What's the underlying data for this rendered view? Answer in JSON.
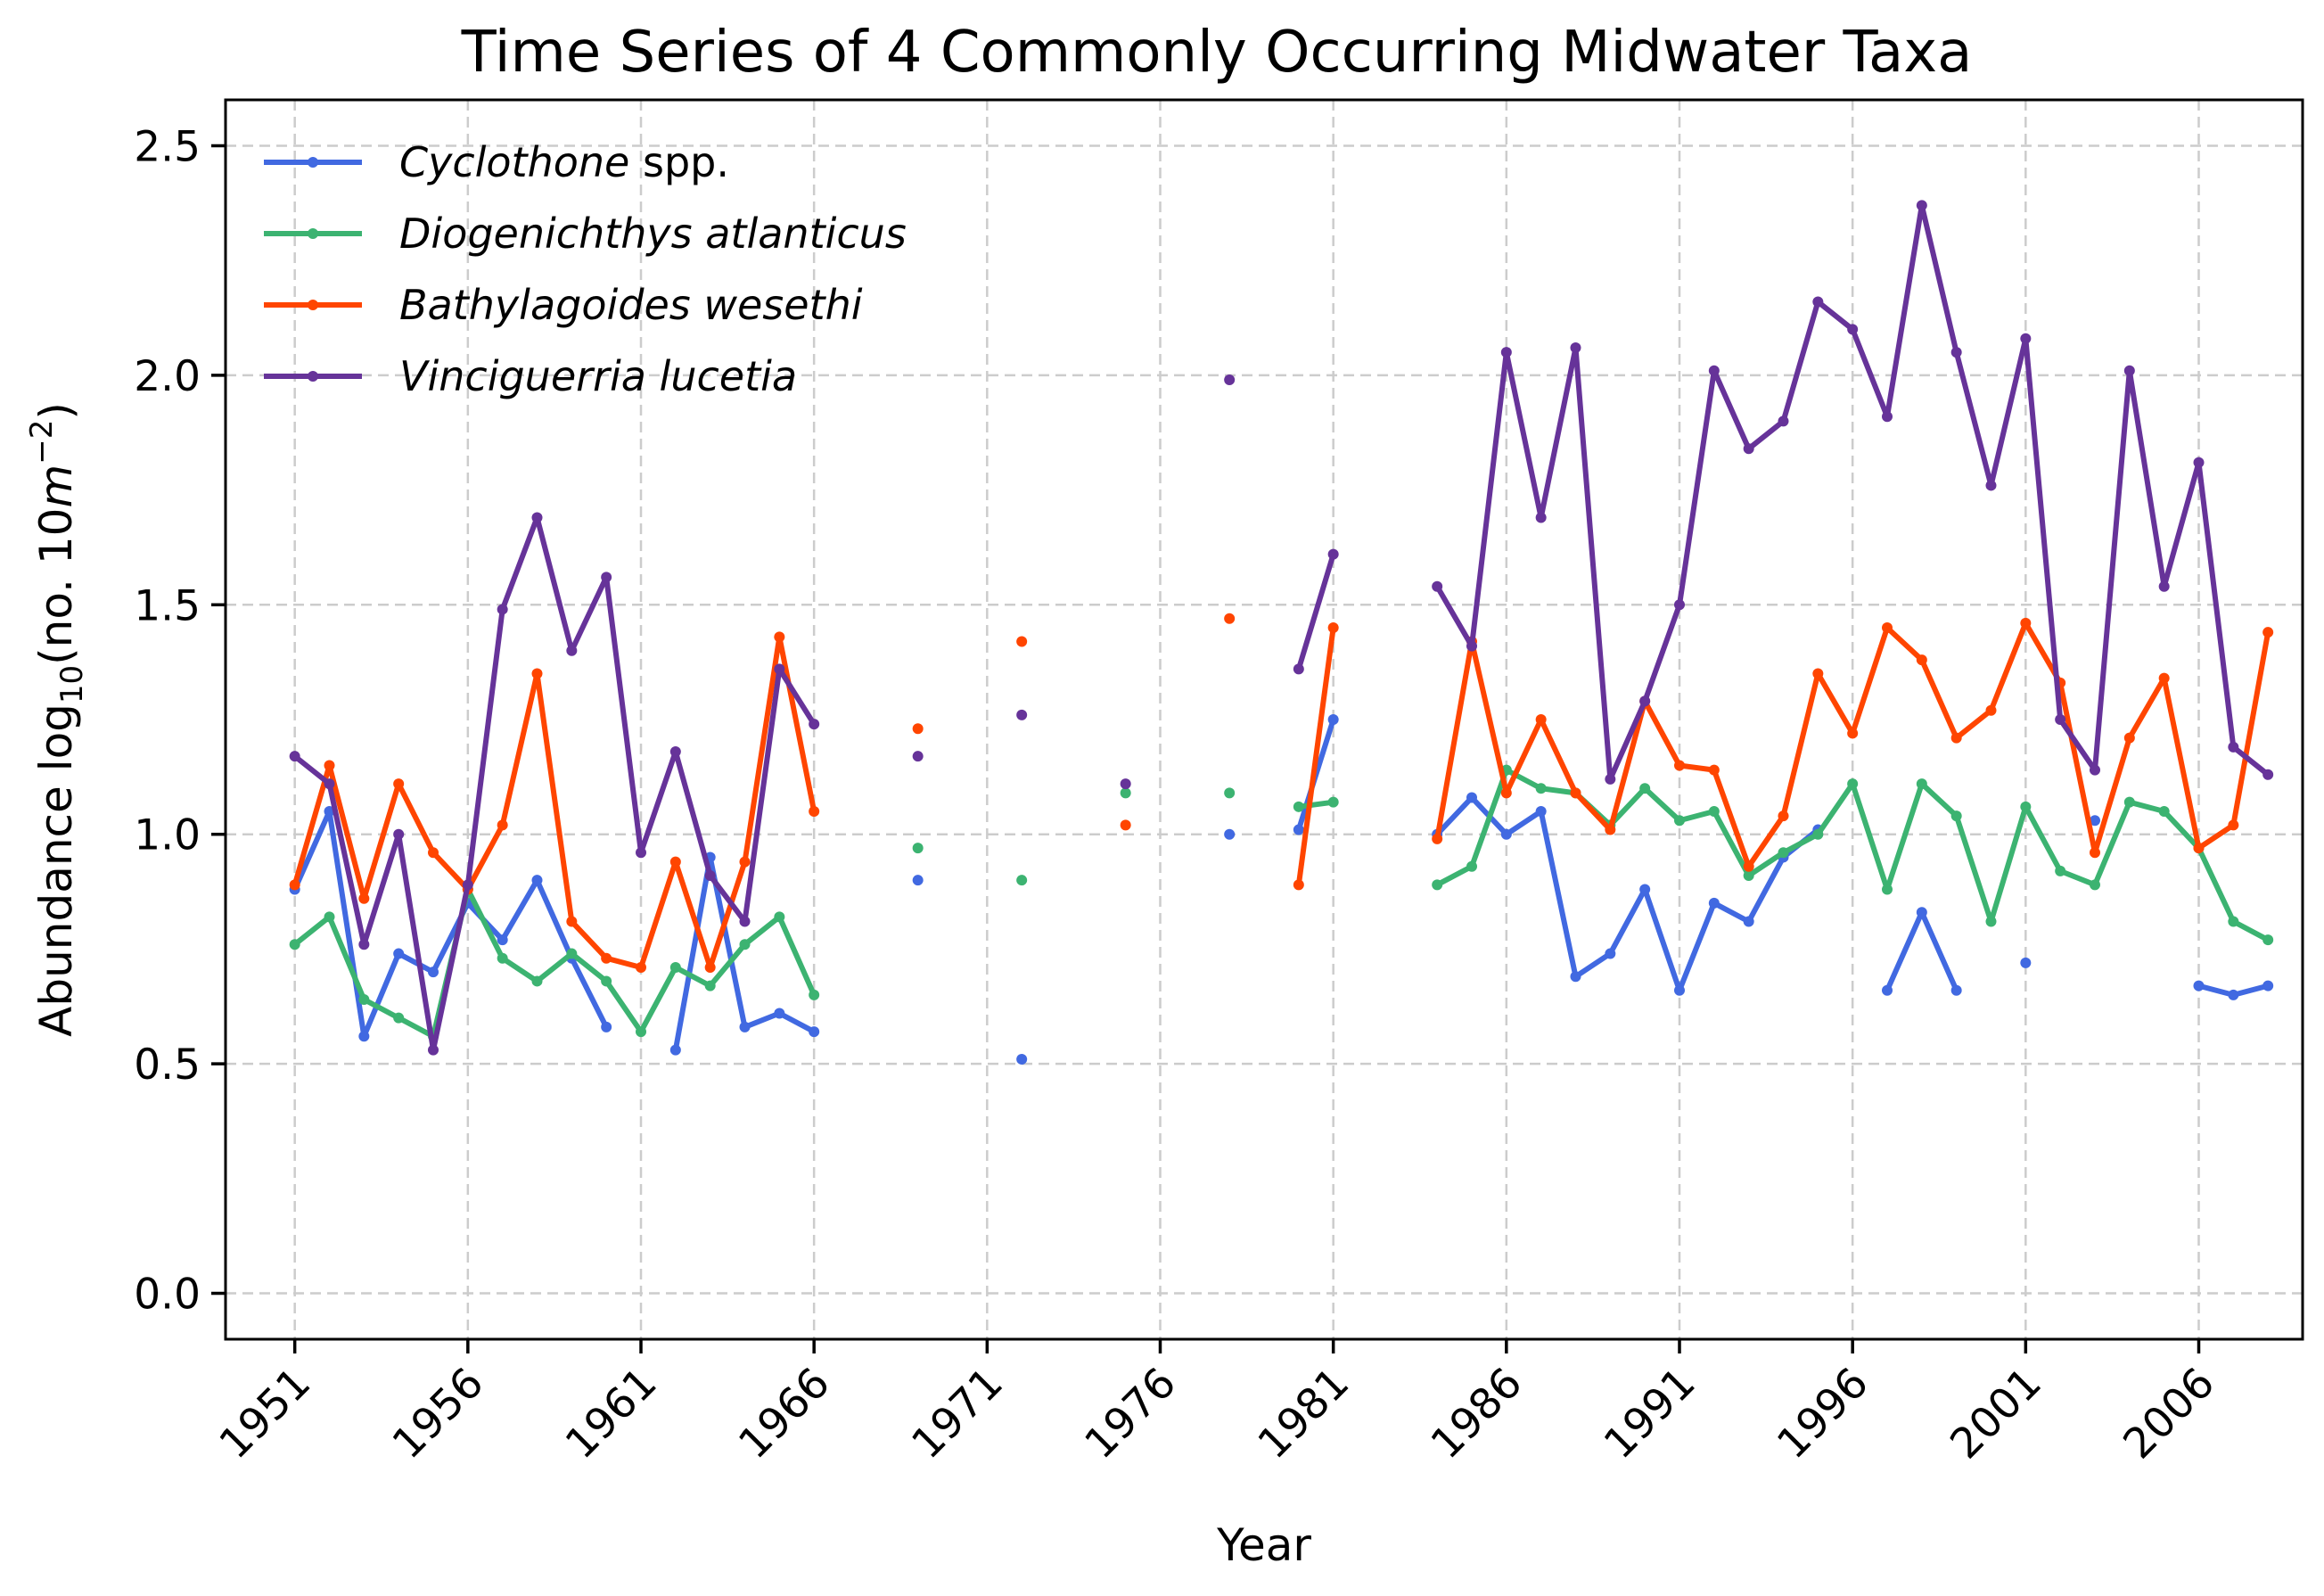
{
  "chart_data": {
    "type": "line",
    "title": "Time Series of 4 Commonly Occurring Midwater Taxa",
    "xlabel": "Year",
    "ylabel": "Abundance log₁₀(no. 10m⁻²)",
    "ylabel_parts": [
      "Abundance log",
      "10",
      "(no.  10",
      "m",
      "−2",
      ")"
    ],
    "xlim": [
      1949,
      2009
    ],
    "ylim": [
      -0.1,
      2.6
    ],
    "xticks": [
      1951,
      1956,
      1961,
      1966,
      1971,
      1976,
      1981,
      1986,
      1991,
      1996,
      2001,
      2006
    ],
    "xtick_labels": [
      "1951",
      "1956",
      "1961",
      "1966",
      "1971",
      "1976",
      "1981",
      "1986",
      "1991",
      "1996",
      "2001",
      "2006"
    ],
    "yticks": [
      0.0,
      0.5,
      1.0,
      1.5,
      2.0,
      2.5
    ],
    "ytick_labels": [
      "0.0",
      "0.5",
      "1.0",
      "1.5",
      "2.0",
      "2.5"
    ],
    "grid": true,
    "legend_position": "top-left",
    "years": [
      1951,
      1952,
      1953,
      1954,
      1955,
      1956,
      1957,
      1958,
      1959,
      1960,
      1961,
      1962,
      1963,
      1964,
      1965,
      1966,
      1967,
      1968,
      1969,
      1970,
      1971,
      1972,
      1973,
      1974,
      1975,
      1976,
      1977,
      1978,
      1979,
      1980,
      1981,
      1982,
      1983,
      1984,
      1985,
      1986,
      1987,
      1988,
      1989,
      1990,
      1991,
      1992,
      1993,
      1994,
      1995,
      1996,
      1997,
      1998,
      1999,
      2000,
      2001,
      2002,
      2003,
      2004,
      2005,
      2006,
      2007,
      2008
    ],
    "series": [
      {
        "name": "Cyclothone spp.",
        "name_italic": "Cyclothone",
        "name_regular": " spp.",
        "color": "#4169e1",
        "values": [
          0.88,
          1.05,
          0.56,
          0.74,
          0.7,
          0.85,
          0.77,
          0.9,
          0.73,
          0.58,
          null,
          0.53,
          0.95,
          0.58,
          0.61,
          0.57,
          null,
          null,
          0.9,
          null,
          null,
          0.51,
          null,
          null,
          null,
          null,
          null,
          1.0,
          null,
          1.01,
          1.25,
          null,
          null,
          1.0,
          1.08,
          1.0,
          1.05,
          0.69,
          0.74,
          0.88,
          0.66,
          0.85,
          0.81,
          0.95,
          1.01,
          null,
          0.66,
          0.83,
          0.66,
          null,
          0.72,
          null,
          1.03,
          null,
          null,
          0.67,
          0.65,
          0.67
        ]
      },
      {
        "name": "Diogenichthys atlanticus",
        "color": "#3cb371",
        "values": [
          0.76,
          0.82,
          0.64,
          0.6,
          0.56,
          0.88,
          0.73,
          0.68,
          0.74,
          0.68,
          0.57,
          0.71,
          0.67,
          0.76,
          0.82,
          0.65,
          null,
          null,
          0.97,
          null,
          null,
          0.9,
          null,
          null,
          1.09,
          null,
          null,
          1.09,
          null,
          1.06,
          1.07,
          null,
          null,
          0.89,
          0.93,
          1.14,
          1.1,
          1.09,
          1.02,
          1.1,
          1.03,
          1.05,
          0.91,
          0.96,
          1.0,
          1.11,
          0.88,
          1.11,
          1.04,
          0.81,
          1.06,
          0.92,
          0.89,
          1.07,
          1.05,
          0.97,
          0.81,
          0.77
        ]
      },
      {
        "name": "Bathylagoides wesethi",
        "color": "#ff4500",
        "values": [
          0.89,
          1.15,
          0.86,
          1.11,
          0.96,
          0.88,
          1.02,
          1.35,
          0.81,
          0.73,
          0.71,
          0.94,
          0.71,
          0.94,
          1.43,
          1.05,
          null,
          null,
          1.23,
          null,
          null,
          1.42,
          null,
          null,
          1.02,
          null,
          null,
          1.47,
          null,
          0.89,
          1.45,
          null,
          null,
          0.99,
          1.42,
          1.09,
          1.25,
          1.09,
          1.01,
          1.29,
          1.15,
          1.14,
          0.93,
          1.04,
          1.35,
          1.22,
          1.45,
          1.38,
          1.21,
          1.27,
          1.46,
          1.33,
          0.96,
          1.21,
          1.34,
          0.97,
          1.02,
          1.44
        ]
      },
      {
        "name": "Vinciguerria lucetia",
        "color": "#663399",
        "values": [
          1.17,
          1.11,
          0.76,
          1.0,
          0.53,
          0.89,
          1.49,
          1.69,
          1.4,
          1.56,
          0.96,
          1.18,
          0.91,
          0.81,
          1.36,
          1.24,
          null,
          null,
          1.17,
          null,
          null,
          1.26,
          null,
          null,
          1.11,
          null,
          null,
          1.99,
          null,
          1.36,
          1.61,
          null,
          null,
          1.54,
          1.41,
          2.05,
          1.69,
          2.06,
          1.12,
          1.29,
          1.5,
          2.01,
          1.84,
          1.9,
          2.16,
          2.1,
          1.91,
          2.37,
          2.05,
          1.76,
          2.08,
          1.25,
          1.14,
          2.01,
          1.54,
          1.81,
          1.19,
          1.13
        ]
      }
    ]
  }
}
